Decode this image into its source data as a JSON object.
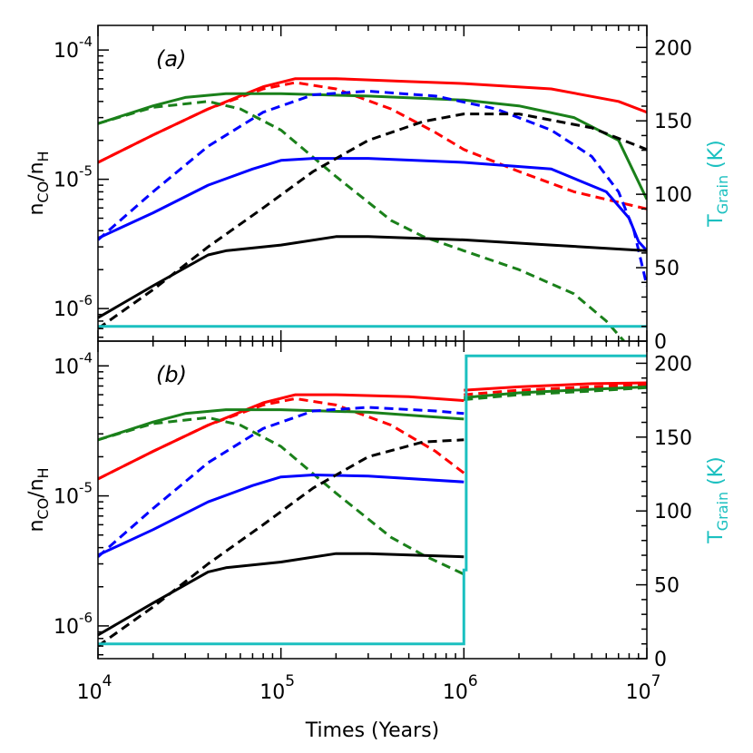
{
  "chart_data": {
    "type": "line",
    "xlabel": "Times (Years)",
    "x_scale": "log",
    "xlim": [
      10000,
      10000000
    ],
    "x_ticks": [
      {
        "value": 10000,
        "base": "10",
        "exp": "4"
      },
      {
        "value": 100000,
        "base": "10",
        "exp": "5"
      },
      {
        "value": 1000000,
        "base": "10",
        "exp": "6"
      },
      {
        "value": 10000000,
        "base": "10",
        "exp": "7"
      }
    ],
    "ylabel_left": {
      "main": "n",
      "sub1": "CO",
      "mid": "/n",
      "sub2": "H"
    },
    "ylabel_right": {
      "main": "T",
      "sub": "Grain",
      "unit": "(K)"
    },
    "y_scale_left": "log",
    "ylim_left": [
      5.6e-07,
      0.000155
    ],
    "y_ticks_left": [
      {
        "value": 1e-06,
        "base": "10",
        "exp": "-6"
      },
      {
        "value": 1e-05,
        "base": "10",
        "exp": "-5"
      },
      {
        "value": 0.0001,
        "base": "10",
        "exp": "-4"
      }
    ],
    "ylim_right": [
      0,
      215
    ],
    "y_ticks_right": [
      "0",
      "50",
      "100",
      "150",
      "200"
    ],
    "colors": {
      "red": "#ff0000",
      "green": "#1a801a",
      "blue": "#0000ff",
      "black": "#000000",
      "cyan": "#1bc0c0"
    },
    "panels": [
      {
        "label": "(a)",
        "series": [
          {
            "name": "red solid",
            "color": "red",
            "dash": false,
            "x": [
              10000,
              20000,
              40000,
              80000,
              120000,
              200000,
              500000,
              1000000,
              3000000,
              7000000,
              10000000
            ],
            "y": [
              1.35e-05,
              2.2e-05,
              3.5e-05,
              5.2e-05,
              6e-05,
              6e-05,
              5.7e-05,
              5.5e-05,
              5e-05,
              4e-05,
              3.3e-05
            ]
          },
          {
            "name": "red dashed",
            "color": "red",
            "dash": true,
            "x": [
              10000,
              20000,
              40000,
              80000,
              120000,
              200000,
              400000,
              700000,
              1000000,
              2000000,
              4000000,
              10000000
            ],
            "y": [
              1.35e-05,
              2.2e-05,
              3.5e-05,
              5e-05,
              5.6e-05,
              5e-05,
              3.5e-05,
              2.3e-05,
              1.7e-05,
              1.15e-05,
              8e-06,
              5.9e-06
            ]
          },
          {
            "name": "green solid",
            "color": "green",
            "dash": false,
            "x": [
              10000,
              20000,
              30000,
              50000,
              100000,
              300000,
              1000000,
              2000000,
              4000000,
              7000000,
              10000000
            ],
            "y": [
              2.7e-05,
              3.7e-05,
              4.3e-05,
              4.6e-05,
              4.6e-05,
              4.4e-05,
              4.1e-05,
              3.7e-05,
              3e-05,
              2e-05,
              7e-06
            ]
          },
          {
            "name": "green dashed",
            "color": "green",
            "dash": true,
            "x": [
              10000,
              20000,
              40000,
              60000,
              100000,
              200000,
              400000,
              600000,
              1000000,
              2000000,
              4000000,
              6000000,
              7500000
            ],
            "y": [
              2.7e-05,
              3.6e-05,
              4e-05,
              3.5e-05,
              2.4e-05,
              1.05e-05,
              4.8e-06,
              3.6e-06,
              2.8e-06,
              2e-06,
              1.3e-06,
              8e-07,
              5.6e-07
            ]
          },
          {
            "name": "blue solid",
            "color": "blue",
            "dash": false,
            "x": [
              10000,
              20000,
              40000,
              70000,
              100000,
              150000,
              300000,
              1000000,
              3000000,
              6000000,
              8000000,
              9000000,
              10000000
            ],
            "y": [
              3.5e-06,
              5.5e-06,
              9e-06,
              1.2e-05,
              1.4e-05,
              1.45e-05,
              1.45e-05,
              1.35e-05,
              1.2e-05,
              8e-06,
              5e-06,
              3.3e-06,
              2.8e-06
            ]
          },
          {
            "name": "blue dashed",
            "color": "blue",
            "dash": true,
            "x": [
              10000,
              20000,
              40000,
              80000,
              150000,
              300000,
              700000,
              1500000,
              3000000,
              5000000,
              7000000,
              8500000,
              10000000
            ],
            "y": [
              3.4e-06,
              8e-06,
              1.8e-05,
              3.3e-05,
              4.5e-05,
              4.8e-05,
              4.4e-05,
              3.5e-05,
              2.4e-05,
              1.5e-05,
              8e-06,
              4e-06,
              1.5e-06
            ]
          },
          {
            "name": "black solid",
            "color": "black",
            "dash": false,
            "x": [
              10000,
              20000,
              40000,
              50000,
              100000,
              200000,
              300000,
              1000000,
              3000000,
              10000000
            ],
            "y": [
              8.5e-07,
              1.5e-06,
              2.6e-06,
              2.8e-06,
              3.1e-06,
              3.6e-06,
              3.6e-06,
              3.4e-06,
              3.1e-06,
              2.8e-06
            ]
          },
          {
            "name": "black dashed",
            "color": "black",
            "dash": true,
            "x": [
              10000,
              20000,
              40000,
              80000,
              150000,
              300000,
              600000,
              1000000,
              2000000,
              5000000,
              10000000
            ],
            "y": [
              7e-07,
              1.4e-06,
              3e-06,
              6e-06,
              1.15e-05,
              2e-05,
              2.8e-05,
              3.2e-05,
              3.2e-05,
              2.5e-05,
              1.7e-05
            ]
          }
        ],
        "grain_temperature": {
          "x": [
            10000,
            10000000
          ],
          "y": [
            10,
            10
          ]
        }
      },
      {
        "label": "(b)",
        "series": [
          {
            "name": "red solid",
            "color": "red",
            "dash": false,
            "x": [
              10000,
              20000,
              40000,
              80000,
              120000,
              200000,
              500000,
              1000000,
              null,
              1000000,
              2000000,
              5000000,
              10000000
            ],
            "y": [
              1.35e-05,
              2.2e-05,
              3.5e-05,
              5.2e-05,
              6e-05,
              6e-05,
              5.8e-05,
              5.4e-05,
              null,
              6.5e-05,
              6.9e-05,
              7.3e-05,
              7.4e-05
            ]
          },
          {
            "name": "red dashed",
            "color": "red",
            "dash": true,
            "x": [
              10000,
              20000,
              40000,
              80000,
              120000,
              200000,
              400000,
              700000,
              1000000,
              null,
              1000000,
              2000000,
              5000000,
              10000000
            ],
            "y": [
              1.35e-05,
              2.2e-05,
              3.5e-05,
              5e-05,
              5.6e-05,
              5e-05,
              3.5e-05,
              2.2e-05,
              1.5e-05,
              null,
              6e-05,
              6.5e-05,
              6.9e-05,
              7.2e-05
            ]
          },
          {
            "name": "green solid",
            "color": "green",
            "dash": false,
            "x": [
              10000,
              20000,
              30000,
              50000,
              100000,
              300000,
              1000000,
              null,
              1000000,
              2000000,
              5000000,
              10000000
            ],
            "y": [
              2.7e-05,
              3.7e-05,
              4.3e-05,
              4.6e-05,
              4.6e-05,
              4.4e-05,
              3.9e-05,
              null,
              5.7e-05,
              6.2e-05,
              6.6e-05,
              6.9e-05
            ]
          },
          {
            "name": "green dashed",
            "color": "green",
            "dash": true,
            "x": [
              10000,
              20000,
              40000,
              60000,
              100000,
              200000,
              400000,
              600000,
              1000000,
              null,
              1000000,
              2000000,
              5000000,
              10000000
            ],
            "y": [
              2.7e-05,
              3.6e-05,
              4e-05,
              3.5e-05,
              2.4e-05,
              1.05e-05,
              4.8e-06,
              3.5e-06,
              2.5e-06,
              null,
              5.5e-05,
              6e-05,
              6.4e-05,
              6.8e-05
            ]
          },
          {
            "name": "blue solid",
            "color": "blue",
            "dash": false,
            "x": [
              10000,
              20000,
              40000,
              70000,
              100000,
              150000,
              300000,
              1000000
            ],
            "y": [
              3.5e-06,
              5.5e-06,
              9e-06,
              1.2e-05,
              1.4e-05,
              1.45e-05,
              1.42e-05,
              1.28e-05
            ]
          },
          {
            "name": "blue dashed",
            "color": "blue",
            "dash": true,
            "x": [
              10000,
              20000,
              40000,
              80000,
              150000,
              300000,
              700000,
              1000000
            ],
            "y": [
              3.4e-06,
              8e-06,
              1.8e-05,
              3.3e-05,
              4.5e-05,
              4.8e-05,
              4.5e-05,
              4.3e-05
            ]
          },
          {
            "name": "black solid",
            "color": "black",
            "dash": false,
            "x": [
              10000,
              20000,
              40000,
              50000,
              100000,
              200000,
              300000,
              1000000
            ],
            "y": [
              8.5e-07,
              1.5e-06,
              2.6e-06,
              2.8e-06,
              3.1e-06,
              3.6e-06,
              3.6e-06,
              3.4e-06
            ]
          },
          {
            "name": "black dashed",
            "color": "black",
            "dash": true,
            "x": [
              10000,
              20000,
              40000,
              80000,
              150000,
              300000,
              600000,
              1000000
            ],
            "y": [
              7e-07,
              1.4e-06,
              3e-06,
              6e-06,
              1.15e-05,
              2e-05,
              2.6e-05,
              2.7e-05
            ]
          }
        ],
        "grain_temperature": {
          "x": [
            10000,
            1000000,
            1000000,
            1030000,
            1030000,
            10000000
          ],
          "y": [
            10,
            10,
            60,
            60,
            205,
            205
          ]
        }
      }
    ]
  }
}
